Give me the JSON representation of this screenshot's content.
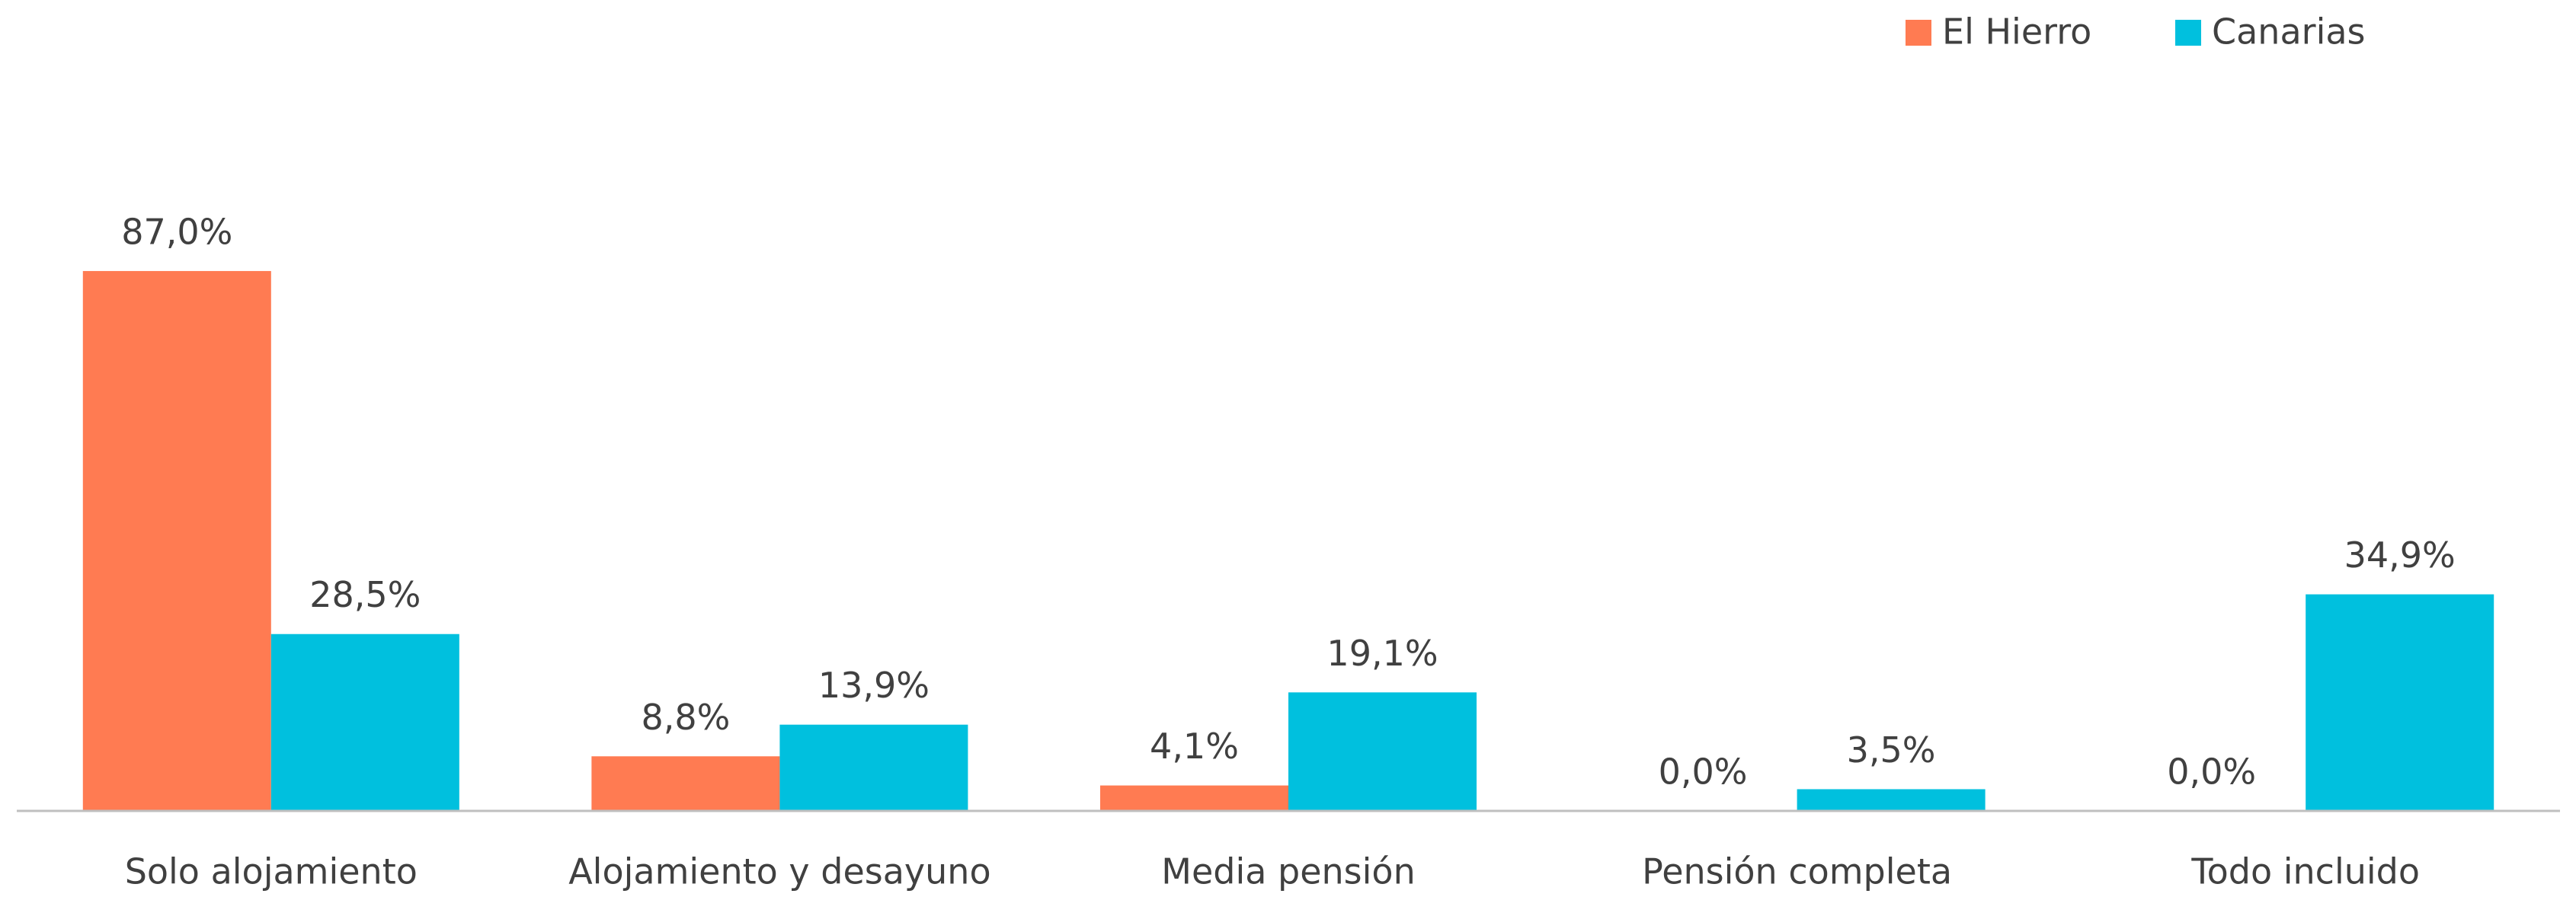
{
  "chart_data": {
    "type": "bar",
    "categories": [
      "Solo alojamiento",
      "Alojamiento y desayuno",
      "Media pensión",
      "Pensión completa",
      "Todo incluido"
    ],
    "series": [
      {
        "name": "El Hierro",
        "color": "#ff7b52",
        "values": [
          87.0,
          8.8,
          4.1,
          0.0,
          0.0
        ],
        "value_labels": [
          "87,0%",
          "8,8%",
          "4,1%",
          "0,0%",
          "0,0%"
        ]
      },
      {
        "name": "Canarias",
        "color": "#00c0de",
        "values": [
          28.5,
          13.9,
          19.1,
          3.5,
          34.9
        ],
        "value_labels": [
          "28,5%",
          "13,9%",
          "19,1%",
          "3,5%",
          "34,9%"
        ]
      }
    ],
    "ylim": [
      0,
      100
    ],
    "legend": "top-right"
  }
}
